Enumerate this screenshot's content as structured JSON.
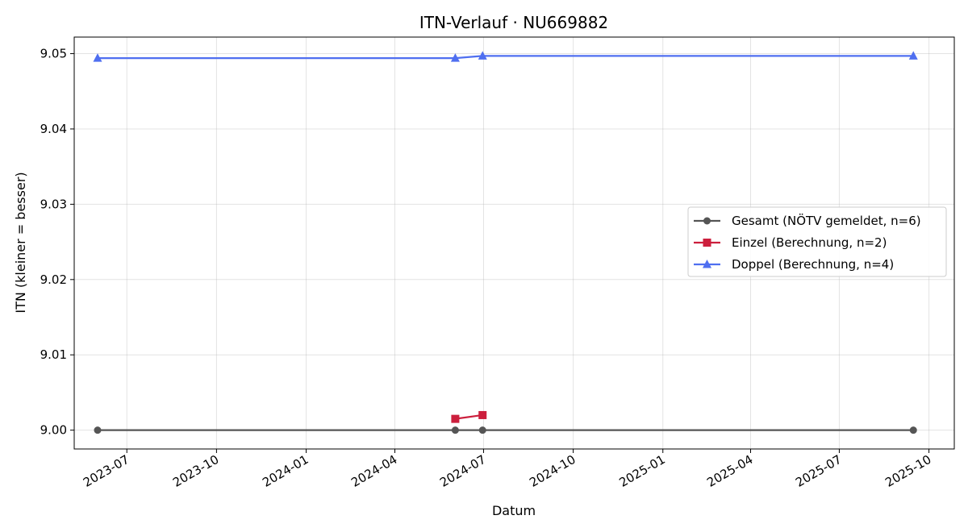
{
  "chart_data": {
    "type": "line",
    "title": "ITN-Verlauf · NU669882",
    "xlabel": "Datum",
    "ylabel": "ITN  (kleiner = besser)",
    "x_ticks": [
      "2023-07",
      "2023-10",
      "2024-01",
      "2024-04",
      "2024-07",
      "2024-10",
      "2025-01",
      "2025-04",
      "2025-07",
      "2025-10"
    ],
    "y_ticks": [
      "9.00",
      "9.01",
      "9.02",
      "9.03",
      "9.04",
      "9.05"
    ],
    "xlim": [
      "2023-05-08",
      "2025-10-27"
    ],
    "ylim": [
      8.9975,
      9.0522
    ],
    "grid": true,
    "legend_position": "center-right",
    "series": [
      {
        "name": "Gesamt (NÖTV gemeldet, n=6)",
        "color": "#555555",
        "marker": "circle",
        "points": [
          {
            "x": "2023-06-01",
            "y": 9.0
          },
          {
            "x": "2024-06-02",
            "y": 9.0
          },
          {
            "x": "2024-06-30",
            "y": 9.0
          },
          {
            "x": "2025-09-15",
            "y": 9.0
          }
        ]
      },
      {
        "name": "Einzel (Berechnung, n=2)",
        "color": "#cc1f3d",
        "marker": "square",
        "points": [
          {
            "x": "2024-06-02",
            "y": 9.0015
          },
          {
            "x": "2024-06-30",
            "y": 9.002
          }
        ]
      },
      {
        "name": "Doppel (Berechnung, n=4)",
        "color": "#4f6ff0",
        "marker": "triangle",
        "points": [
          {
            "x": "2023-06-01",
            "y": 9.0494
          },
          {
            "x": "2024-06-02",
            "y": 9.0494
          },
          {
            "x": "2024-06-30",
            "y": 9.0497
          },
          {
            "x": "2025-09-15",
            "y": 9.0497
          }
        ]
      }
    ]
  }
}
